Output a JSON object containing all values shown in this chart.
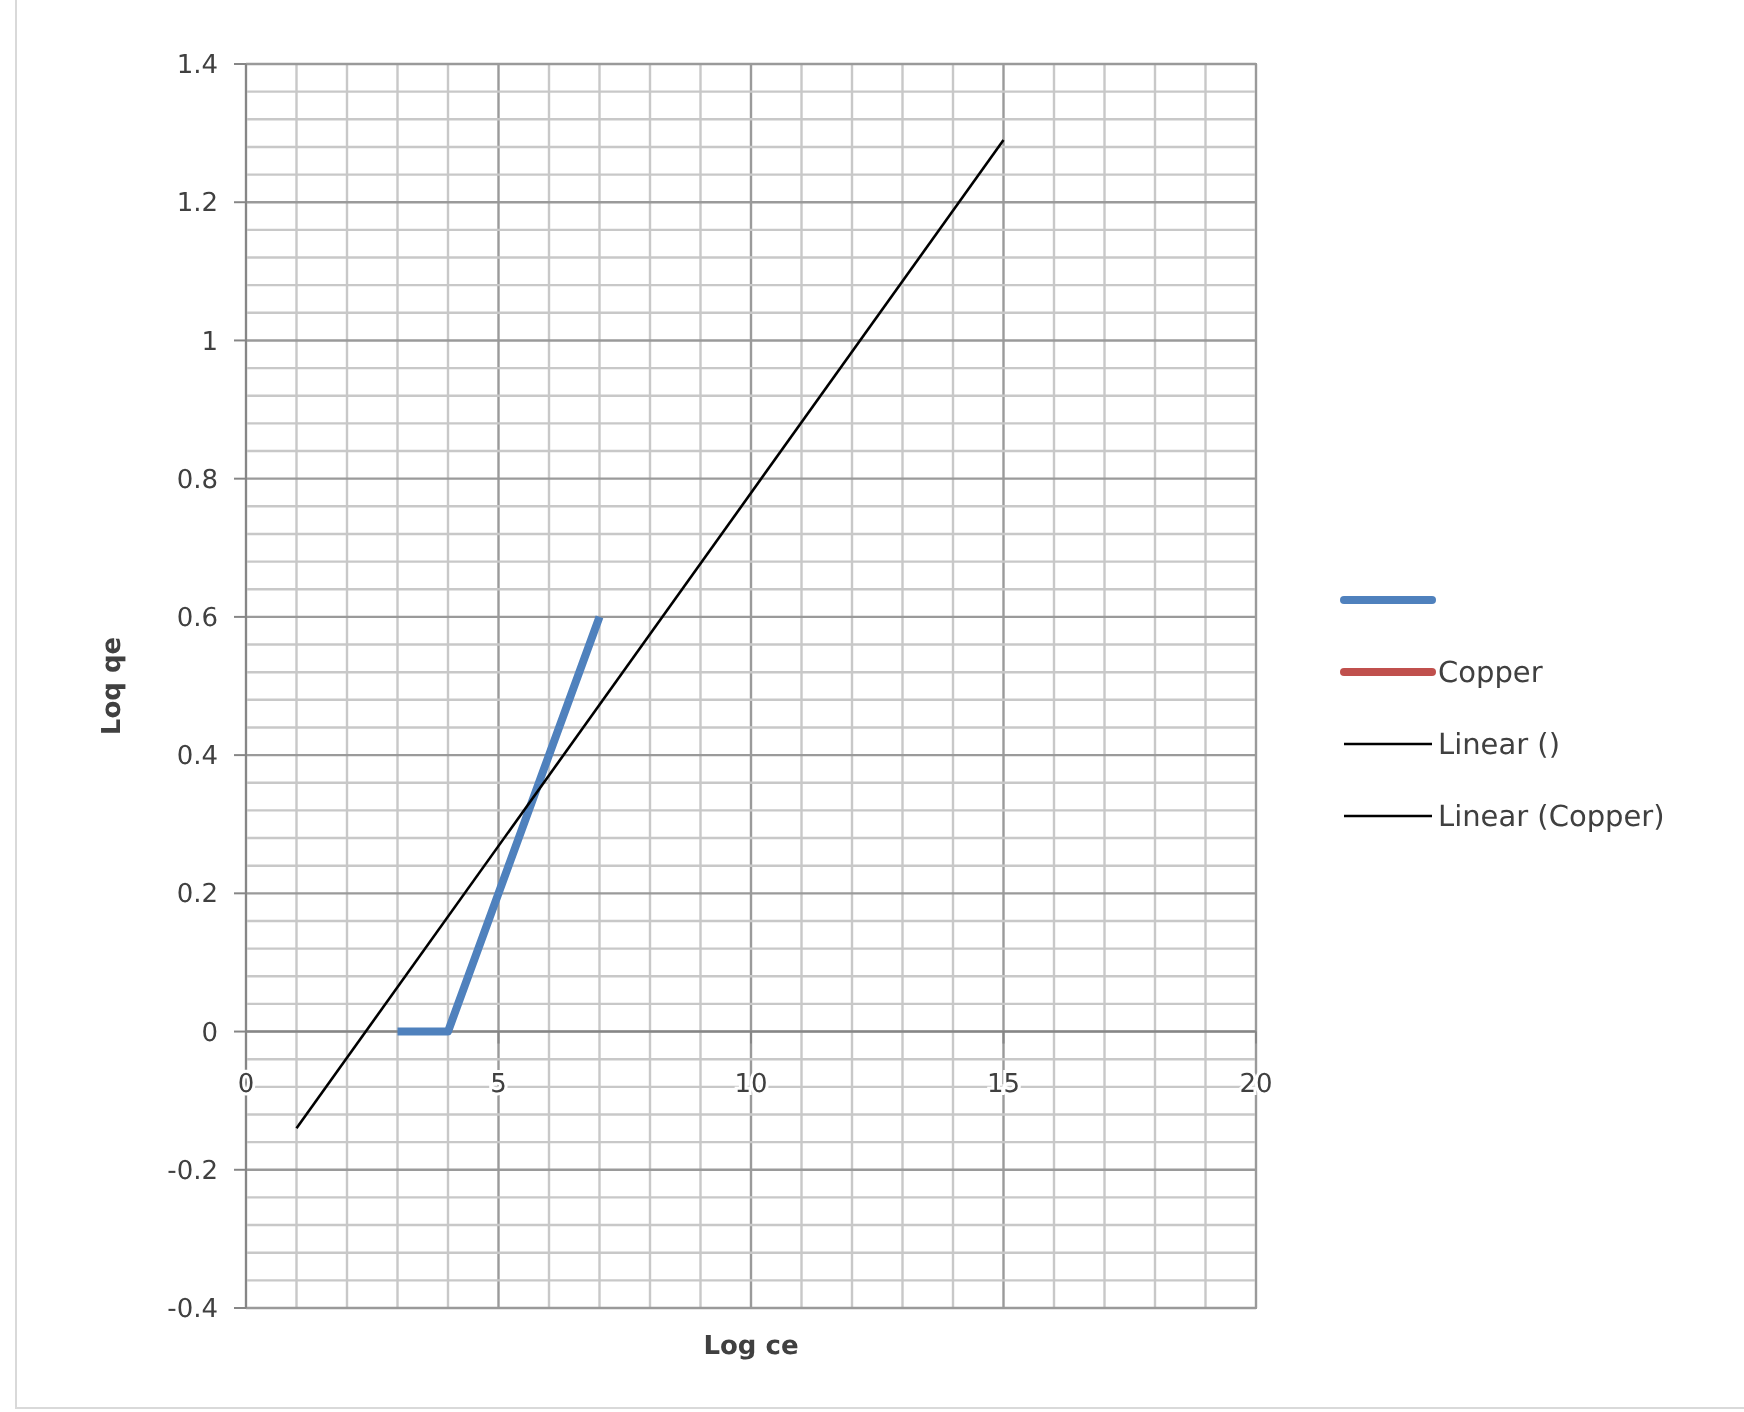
{
  "chart_data": {
    "type": "line",
    "xlabel": "Log ce",
    "ylabel": "Loq qe",
    "xlim": [
      0,
      20
    ],
    "ylim": [
      -0.4,
      1.4
    ],
    "xticks": [
      0,
      {
        "value": 1,
        "label": null
      },
      {
        "value": 2,
        "label": null
      },
      {
        "value": 3,
        "label": null
      },
      {
        "value": 4,
        "label": null
      },
      5,
      {
        "value": 6,
        "label": null
      },
      {
        "value": 7,
        "label": null
      },
      {
        "value": 8,
        "label": null
      },
      {
        "value": 9,
        "label": null
      },
      10,
      {
        "value": 11,
        "label": null
      },
      {
        "value": 12,
        "label": null
      },
      {
        "value": 13,
        "label": null
      },
      {
        "value": 14,
        "label": null
      },
      15,
      {
        "value": 16,
        "label": null
      },
      {
        "value": 17,
        "label": null
      },
      {
        "value": 18,
        "label": null
      },
      {
        "value": 19,
        "label": null
      },
      20
    ],
    "yticks": [
      -0.4,
      {
        "value": -0.36,
        "label": null
      },
      {
        "value": -0.32,
        "label": null
      },
      {
        "value": -0.28,
        "label": null
      },
      {
        "value": -0.24,
        "label": null
      },
      -0.2,
      {
        "value": -0.16,
        "label": null
      },
      {
        "value": -0.12,
        "label": null
      },
      {
        "value": -0.08,
        "label": null
      },
      {
        "value": -0.04,
        "label": null
      },
      0,
      {
        "value": 0.04,
        "label": null
      },
      {
        "value": 0.08,
        "label": null
      },
      {
        "value": 0.12,
        "label": null
      },
      {
        "value": 0.16,
        "label": null
      },
      0.2,
      {
        "value": 0.24,
        "label": null
      },
      {
        "value": 0.28,
        "label": null
      },
      {
        "value": 0.32,
        "label": null
      },
      {
        "value": 0.36,
        "label": null
      },
      0.4,
      {
        "value": 0.44,
        "label": null
      },
      {
        "value": 0.48,
        "label": null
      },
      {
        "value": 0.52,
        "label": null
      },
      {
        "value": 0.56,
        "label": null
      },
      0.6,
      {
        "value": 0.64,
        "label": null
      },
      {
        "value": 0.68,
        "label": null
      },
      {
        "value": 0.72,
        "label": null
      },
      {
        "value": 0.76,
        "label": null
      },
      0.8,
      {
        "value": 0.84,
        "label": null
      },
      {
        "value": 0.88,
        "label": null
      },
      {
        "value": 0.92,
        "label": null
      },
      {
        "value": 0.96,
        "label": null
      },
      1,
      {
        "value": 1.04,
        "label": null
      },
      {
        "value": 1.08,
        "label": null
      },
      {
        "value": 1.12,
        "label": null
      },
      {
        "value": 1.16,
        "label": null
      },
      1.2,
      {
        "value": 1.24,
        "label": null
      },
      {
        "value": 1.28,
        "label": null
      },
      {
        "value": 1.32,
        "label": null
      },
      {
        "value": 1.36,
        "label": null
      },
      1.4
    ],
    "grid": true,
    "legend": "right",
    "marker": "none",
    "line_style": "solid",
    "series": [
      {
        "color": "#4f81bd",
        "x": [
          3,
          4,
          7
        ],
        "values": [
          0,
          0,
          0.6
        ]
      },
      {
        "name": "Copper",
        "color": "#c0504d"
      },
      {
        "name": "Linear ()",
        "color": "#000000",
        "x": [
          1,
          15
        ],
        "values": [
          -0.14,
          1.29
        ]
      },
      {
        "name": "Linear (Copper)",
        "color": "#000000"
      }
    ]
  }
}
